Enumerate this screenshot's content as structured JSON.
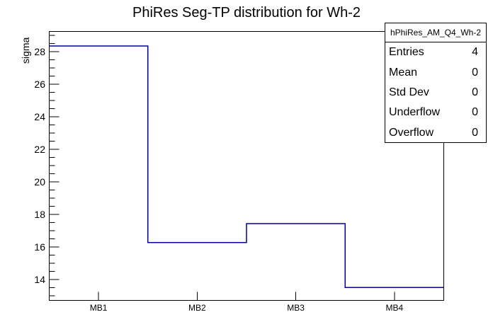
{
  "title": "PhiRes Seg-TP distribution for Wh-2",
  "stats_box": {
    "header": "hPhiRes_AM_Q4_Wh-2",
    "rows": [
      {
        "label": "Entries",
        "value": "4"
      },
      {
        "label": "Mean",
        "value": "0"
      },
      {
        "label": "Std Dev",
        "value": "0"
      },
      {
        "label": "Underflow",
        "value": "0"
      },
      {
        "label": "Overflow",
        "value": "0"
      }
    ]
  },
  "chart_data": {
    "type": "bar",
    "style": "step-histogram",
    "title": "PhiRes Seg-TP distribution for Wh-2",
    "xlabel": "",
    "ylabel": "sigma",
    "categories": [
      "MB1",
      "MB2",
      "MB3",
      "MB4"
    ],
    "values": [
      28.36,
      16.28,
      17.44,
      13.51
    ],
    "ylim": [
      12.72,
      29.25
    ],
    "yticks_major": [
      14,
      16,
      18,
      20,
      22,
      24,
      26,
      28
    ],
    "ytick_minor_step": 0.5,
    "grid": false,
    "legend_position": "top-right-stats-box",
    "line_color": "#000099",
    "frame_color": "#000000",
    "background_color": "#ffffff"
  }
}
